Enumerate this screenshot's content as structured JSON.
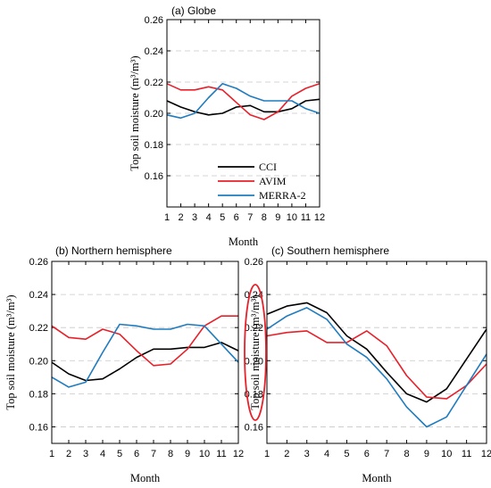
{
  "chart_data": [
    {
      "type": "line",
      "title": "(a) Globe",
      "xlabel": "Month",
      "ylabel": "Top soil moisture (m³/m³)",
      "ylim": [
        0.14,
        0.26
      ],
      "yticks": [
        "0.16",
        "0.18",
        "0.20",
        "0.22",
        "0.24",
        "0.26"
      ],
      "xticks": [
        "1",
        "2",
        "3",
        "4",
        "5",
        "6",
        "7",
        "8",
        "9",
        "10",
        "11",
        "12"
      ],
      "grid": "dashed horizontal",
      "legend": "bottom-center",
      "x": [
        1,
        2,
        3,
        4,
        5,
        6,
        7,
        8,
        9,
        10,
        11,
        12
      ],
      "series": [
        {
          "name": "CCI",
          "color": "#000000",
          "values": [
            0.208,
            0.204,
            0.201,
            0.199,
            0.2,
            0.204,
            0.205,
            0.201,
            0.201,
            0.203,
            0.208,
            0.209
          ]
        },
        {
          "name": "AVIM",
          "color": "#e8202a",
          "values": [
            0.219,
            0.215,
            0.215,
            0.217,
            0.215,
            0.207,
            0.199,
            0.196,
            0.201,
            0.211,
            0.216,
            0.219
          ]
        },
        {
          "name": "MERRA-2",
          "color": "#1f7bbf",
          "values": [
            0.199,
            0.197,
            0.2,
            0.21,
            0.219,
            0.216,
            0.211,
            0.208,
            0.208,
            0.208,
            0.203,
            0.2
          ]
        }
      ]
    },
    {
      "type": "line",
      "title": "(b) Northern hemisphere",
      "xlabel": "Month",
      "ylabel": "Top soil moisture (m³/m³)",
      "ylim": [
        0.15,
        0.26
      ],
      "yticks": [
        "0.16",
        "0.18",
        "0.20",
        "0.22",
        "0.24",
        "0.26"
      ],
      "xticks": [
        "1",
        "2",
        "3",
        "4",
        "5",
        "6",
        "7",
        "8",
        "9",
        "10",
        "11",
        "12"
      ],
      "grid": "dashed horizontal",
      "x": [
        1,
        2,
        3,
        4,
        5,
        6,
        7,
        8,
        9,
        10,
        11,
        12
      ],
      "series": [
        {
          "name": "CCI",
          "color": "#000000",
          "values": [
            0.199,
            0.192,
            0.188,
            0.189,
            0.195,
            0.202,
            0.207,
            0.207,
            0.208,
            0.208,
            0.211,
            0.206
          ]
        },
        {
          "name": "AVIM",
          "color": "#e8202a",
          "values": [
            0.221,
            0.214,
            0.213,
            0.219,
            0.216,
            0.206,
            0.197,
            0.198,
            0.207,
            0.221,
            0.227,
            0.227
          ]
        },
        {
          "name": "MERRA-2",
          "color": "#1f7bbf",
          "values": [
            0.19,
            0.184,
            0.187,
            0.205,
            0.222,
            0.221,
            0.219,
            0.219,
            0.222,
            0.221,
            0.21,
            0.199
          ]
        }
      ]
    },
    {
      "type": "line",
      "title": "(c) Southern hemisphere",
      "xlabel": "Month",
      "ylabel": "Top soil moisture (m³/m³)",
      "ylim": [
        0.15,
        0.26
      ],
      "yticks": [
        "0.16",
        "0.18",
        "0.20",
        "0.22",
        "0.24",
        "0.26"
      ],
      "xticks": [
        "1",
        "2",
        "3",
        "4",
        "5",
        "6",
        "7",
        "8",
        "9",
        "10",
        "11",
        "12"
      ],
      "grid": "dashed horizontal",
      "x": [
        1,
        2,
        3,
        4,
        5,
        6,
        7,
        8,
        9,
        10,
        11,
        12
      ],
      "series": [
        {
          "name": "CCI",
          "color": "#000000",
          "values": [
            0.228,
            0.233,
            0.235,
            0.229,
            0.215,
            0.207,
            0.193,
            0.18,
            0.175,
            0.183,
            0.201,
            0.219
          ]
        },
        {
          "name": "AVIM",
          "color": "#e8202a",
          "values": [
            0.215,
            0.217,
            0.218,
            0.211,
            0.211,
            0.218,
            0.209,
            0.191,
            0.178,
            0.177,
            0.185,
            0.198
          ]
        },
        {
          "name": "MERRA-2",
          "color": "#1f7bbf",
          "values": [
            0.219,
            0.227,
            0.232,
            0.225,
            0.21,
            0.202,
            0.189,
            0.172,
            0.16,
            0.166,
            0.185,
            0.204
          ]
        }
      ]
    }
  ],
  "annotation": {
    "shape": "ellipse",
    "color": "#e8202a"
  }
}
